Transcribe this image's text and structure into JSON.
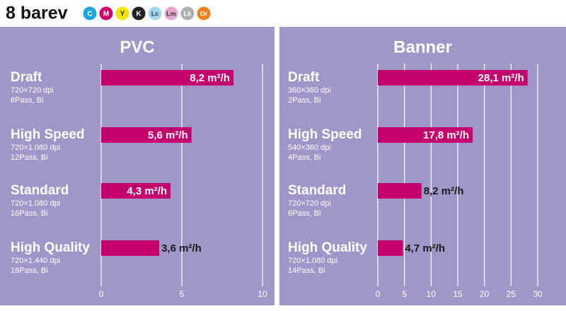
{
  "header": {
    "title": "8 barev",
    "inks": [
      {
        "label": "C",
        "color": "#1ba6de"
      },
      {
        "label": "M",
        "color": "#c8006e"
      },
      {
        "label": "Y",
        "color": "#f5e400"
      },
      {
        "label": "K",
        "color": "#222222"
      },
      {
        "label": "Lc",
        "color": "#a6d7f0"
      },
      {
        "label": "Lm",
        "color": "#e8a7cf"
      },
      {
        "label": "Lk",
        "color": "#b0b0b0"
      },
      {
        "label": "Or",
        "color": "#e8801e"
      }
    ]
  },
  "chart_data": [
    {
      "type": "bar",
      "title": "PVC",
      "color": "#c4006e",
      "categories": [
        "Draft",
        "High Speed",
        "Standard",
        "High Quality"
      ],
      "resolutions": [
        "720×720 dpi",
        "720×1.080 dpi",
        "720×1.080 dpi",
        "720×1.440 dpi"
      ],
      "passes": [
        "8Pass, Bi",
        "12Pass, Bi",
        "16Pass, Bi",
        "18Pass, Bi"
      ],
      "values": [
        8.2,
        5.6,
        4.3,
        3.6
      ],
      "value_labels": [
        "8,2 m²/h",
        "5,6 m²/h",
        "4,3 m²/h",
        "3,6 m²/h"
      ],
      "xlim": [
        0,
        10
      ],
      "xticks": [
        0,
        5,
        10
      ],
      "grid": true
    },
    {
      "type": "bar",
      "title": "Banner",
      "color": "#c4006e",
      "categories": [
        "Draft",
        "High Speed",
        "Standard",
        "High Quality"
      ],
      "resolutions": [
        "360×360 dpi",
        "540×360 dpi",
        "720×720 dpi",
        "720×1.080 dpi"
      ],
      "passes": [
        "2Pass, Bi",
        "4Pass, Bi",
        "8Pass, Bi",
        "14Pass, Bi"
      ],
      "values": [
        28.1,
        17.8,
        8.2,
        4.7
      ],
      "value_labels": [
        "28,1 m²/h",
        "17,8 m²/h",
        "8,2 m²/h",
        "4,7 m²/h"
      ],
      "xlim": [
        0,
        30
      ],
      "xticks": [
        0,
        5,
        10,
        15,
        20,
        25,
        30
      ],
      "grid": true
    }
  ]
}
